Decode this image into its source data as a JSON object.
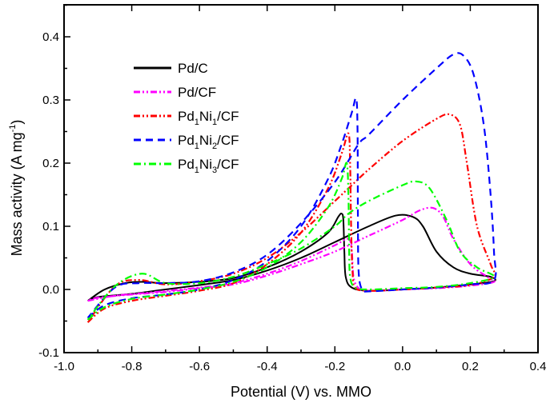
{
  "chart_data": {
    "type": "line",
    "title": "",
    "xlabel": "Potential (V) vs. MMO",
    "ylabel": "Mass activity (A mg",
    "ylabel_superscript": "-1",
    "ylabel_suffix": ")",
    "xlim": [
      -1.0,
      0.4
    ],
    "ylim": [
      -0.1,
      0.45
    ],
    "xticks": [
      -1.0,
      -0.8,
      -0.6,
      -0.4,
      -0.2,
      0.0,
      0.2,
      0.4
    ],
    "xtick_labels": [
      "-1.0",
      "-0.8",
      "-0.6",
      "-0.4",
      "-0.2",
      "0.0",
      "0.2",
      "0.4"
    ],
    "yticks": [
      -0.1,
      0.0,
      0.1,
      0.2,
      0.3,
      0.4
    ],
    "ytick_labels": [
      "-0.1",
      "0.0",
      "0.1",
      "0.2",
      "0.3",
      "0.4"
    ],
    "grid": false,
    "legend_position": "top-left",
    "series": [
      {
        "name": "Pd/C",
        "label_parts": [
          "Pd/C"
        ],
        "color": "#000000",
        "style": "solid",
        "points": [
          [
            -0.93,
            -0.018
          ],
          [
            -0.88,
            0.0
          ],
          [
            -0.82,
            0.01
          ],
          [
            -0.77,
            0.012
          ],
          [
            -0.7,
            0.01
          ],
          [
            -0.6,
            0.012
          ],
          [
            -0.5,
            0.018
          ],
          [
            -0.4,
            0.035
          ],
          [
            -0.3,
            0.06
          ],
          [
            -0.22,
            0.09
          ],
          [
            -0.19,
            0.115
          ],
          [
            -0.18,
            0.12
          ],
          [
            -0.175,
            0.11
          ],
          [
            -0.172,
            0.06
          ],
          [
            -0.168,
            0.02
          ],
          [
            -0.15,
            0.003
          ],
          [
            -0.1,
            -0.002
          ],
          [
            0.0,
            0.0
          ],
          [
            0.1,
            0.003
          ],
          [
            0.2,
            0.008
          ],
          [
            0.27,
            0.013
          ],
          [
            0.26,
            0.02
          ],
          [
            0.2,
            0.025
          ],
          [
            0.15,
            0.035
          ],
          [
            0.1,
            0.06
          ],
          [
            0.06,
            0.1
          ],
          [
            0.03,
            0.115
          ],
          [
            -0.02,
            0.117
          ],
          [
            -0.1,
            0.1
          ],
          [
            -0.2,
            0.075
          ],
          [
            -0.3,
            0.05
          ],
          [
            -0.4,
            0.03
          ],
          [
            -0.5,
            0.015
          ],
          [
            -0.6,
            0.007
          ],
          [
            -0.7,
            0.0
          ],
          [
            -0.8,
            -0.007
          ],
          [
            -0.9,
            -0.012
          ],
          [
            -0.93,
            -0.018
          ]
        ]
      },
      {
        "name": "Pd/CF",
        "label_parts": [
          "Pd/CF"
        ],
        "color": "#ff00ff",
        "style": "dash-dot-dot",
        "points": [
          [
            -0.93,
            -0.018
          ],
          [
            -0.85,
            -0.01
          ],
          [
            -0.75,
            -0.005
          ],
          [
            -0.6,
            0.003
          ],
          [
            -0.5,
            0.01
          ],
          [
            -0.4,
            0.025
          ],
          [
            -0.3,
            0.045
          ],
          [
            -0.2,
            0.07
          ],
          [
            -0.16,
            0.08
          ],
          [
            -0.15,
            0.06
          ],
          [
            -0.145,
            0.02
          ],
          [
            -0.13,
            0.002
          ],
          [
            -0.1,
            -0.002
          ],
          [
            0.0,
            0.0
          ],
          [
            0.1,
            0.002
          ],
          [
            0.2,
            0.006
          ],
          [
            0.27,
            0.012
          ],
          [
            0.25,
            0.02
          ],
          [
            0.2,
            0.04
          ],
          [
            0.15,
            0.08
          ],
          [
            0.12,
            0.115
          ],
          [
            0.09,
            0.129
          ],
          [
            0.05,
            0.125
          ],
          [
            0.0,
            0.11
          ],
          [
            -0.1,
            0.085
          ],
          [
            -0.2,
            0.06
          ],
          [
            -0.3,
            0.04
          ],
          [
            -0.4,
            0.022
          ],
          [
            -0.5,
            0.008
          ],
          [
            -0.6,
            0.002
          ],
          [
            -0.7,
            -0.004
          ],
          [
            -0.8,
            -0.008
          ],
          [
            -0.9,
            -0.013
          ],
          [
            -0.93,
            -0.018
          ]
        ]
      },
      {
        "name": "Pd1Ni1/CF",
        "label_parts": [
          "Pd",
          "1",
          "Ni",
          "1",
          "/CF"
        ],
        "color": "#ff0000",
        "style": "dash-dot-dot",
        "points": [
          [
            -0.93,
            -0.052
          ],
          [
            -0.88,
            -0.03
          ],
          [
            -0.8,
            -0.018
          ],
          [
            -0.7,
            -0.01
          ],
          [
            -0.6,
            -0.002
          ],
          [
            -0.5,
            0.01
          ],
          [
            -0.4,
            0.04
          ],
          [
            -0.3,
            0.09
          ],
          [
            -0.22,
            0.16
          ],
          [
            -0.18,
            0.215
          ],
          [
            -0.16,
            0.247
          ],
          [
            -0.155,
            0.2
          ],
          [
            -0.152,
            0.1
          ],
          [
            -0.148,
            0.03
          ],
          [
            -0.14,
            0.003
          ],
          [
            -0.1,
            -0.002
          ],
          [
            0.0,
            0.0
          ],
          [
            0.1,
            0.003
          ],
          [
            0.2,
            0.007
          ],
          [
            0.27,
            0.02
          ],
          [
            0.26,
            0.04
          ],
          [
            0.22,
            0.1
          ],
          [
            0.19,
            0.2
          ],
          [
            0.17,
            0.26
          ],
          [
            0.14,
            0.277
          ],
          [
            0.1,
            0.27
          ],
          [
            0.0,
            0.235
          ],
          [
            -0.1,
            0.19
          ],
          [
            -0.15,
            0.165
          ],
          [
            -0.2,
            0.14
          ],
          [
            -0.3,
            0.09
          ],
          [
            -0.4,
            0.05
          ],
          [
            -0.5,
            0.025
          ],
          [
            -0.6,
            0.013
          ],
          [
            -0.7,
            0.008
          ],
          [
            -0.78,
            0.015
          ],
          [
            -0.85,
            0.005
          ],
          [
            -0.93,
            -0.052
          ]
        ]
      },
      {
        "name": "Pd1Ni2/CF",
        "label_parts": [
          "Pd",
          "1",
          "Ni",
          "2",
          "/CF"
        ],
        "color": "#0000ff",
        "style": "dashed",
        "points": [
          [
            -0.93,
            -0.045
          ],
          [
            -0.88,
            -0.025
          ],
          [
            -0.8,
            -0.014
          ],
          [
            -0.7,
            -0.008
          ],
          [
            -0.6,
            0.0
          ],
          [
            -0.5,
            0.015
          ],
          [
            -0.4,
            0.045
          ],
          [
            -0.3,
            0.1
          ],
          [
            -0.22,
            0.175
          ],
          [
            -0.18,
            0.23
          ],
          [
            -0.15,
            0.28
          ],
          [
            -0.137,
            0.302
          ],
          [
            -0.133,
            0.25
          ],
          [
            -0.132,
            0.12
          ],
          [
            -0.13,
            0.03
          ],
          [
            -0.12,
            0.0
          ],
          [
            -0.1,
            -0.003
          ],
          [
            0.0,
            0.0
          ],
          [
            0.1,
            0.003
          ],
          [
            0.2,
            0.008
          ],
          [
            0.27,
            0.015
          ],
          [
            0.27,
            0.06
          ],
          [
            0.26,
            0.15
          ],
          [
            0.24,
            0.26
          ],
          [
            0.21,
            0.34
          ],
          [
            0.18,
            0.37
          ],
          [
            0.15,
            0.372
          ],
          [
            0.1,
            0.35
          ],
          [
            0.0,
            0.3
          ],
          [
            -0.1,
            0.245
          ],
          [
            -0.13,
            0.23
          ],
          [
            -0.2,
            0.17
          ],
          [
            -0.3,
            0.105
          ],
          [
            -0.4,
            0.055
          ],
          [
            -0.5,
            0.027
          ],
          [
            -0.6,
            0.013
          ],
          [
            -0.7,
            0.01
          ],
          [
            -0.78,
            0.01
          ],
          [
            -0.85,
            0.003
          ],
          [
            -0.93,
            -0.045
          ]
        ]
      },
      {
        "name": "Pd1Ni3/CF",
        "label_parts": [
          "Pd",
          "1",
          "Ni",
          "3",
          "/CF"
        ],
        "color": "#00ff00",
        "style": "dash-dot",
        "points": [
          [
            -0.93,
            -0.048
          ],
          [
            -0.88,
            -0.028
          ],
          [
            -0.8,
            -0.015
          ],
          [
            -0.7,
            -0.008
          ],
          [
            -0.6,
            0.0
          ],
          [
            -0.5,
            0.012
          ],
          [
            -0.4,
            0.035
          ],
          [
            -0.3,
            0.075
          ],
          [
            -0.22,
            0.13
          ],
          [
            -0.18,
            0.175
          ],
          [
            -0.165,
            0.2
          ],
          [
            -0.16,
            0.15
          ],
          [
            -0.158,
            0.07
          ],
          [
            -0.155,
            0.02
          ],
          [
            -0.14,
            0.003
          ],
          [
            -0.1,
            0.0
          ],
          [
            0.0,
            0.002
          ],
          [
            0.1,
            0.004
          ],
          [
            0.2,
            0.01
          ],
          [
            0.27,
            0.02
          ],
          [
            0.22,
            0.035
          ],
          [
            0.17,
            0.06
          ],
          [
            0.13,
            0.11
          ],
          [
            0.08,
            0.16
          ],
          [
            0.04,
            0.171
          ],
          [
            0.0,
            0.165
          ],
          [
            -0.1,
            0.14
          ],
          [
            -0.16,
            0.12
          ],
          [
            -0.2,
            0.1
          ],
          [
            -0.3,
            0.065
          ],
          [
            -0.4,
            0.04
          ],
          [
            -0.5,
            0.02
          ],
          [
            -0.6,
            0.01
          ],
          [
            -0.7,
            0.01
          ],
          [
            -0.77,
            0.025
          ],
          [
            -0.85,
            0.005
          ],
          [
            -0.93,
            -0.048
          ]
        ]
      }
    ]
  }
}
